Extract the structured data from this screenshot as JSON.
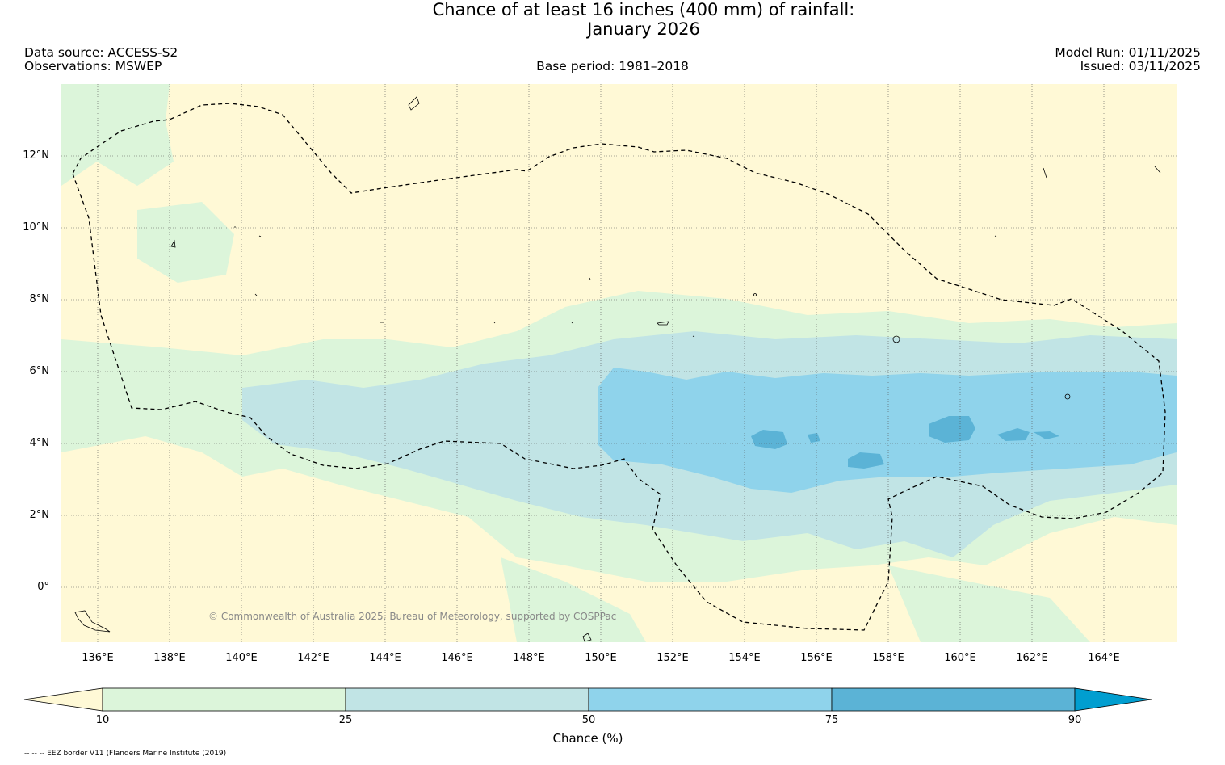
{
  "title": {
    "line1": "Chance of at least 16 inches (400  mm) of rainfall:",
    "line2": "January 2026"
  },
  "header": {
    "data_source": "Data source: ACCESS-S2",
    "observations": "Observations: MSWEP",
    "base_period": "Base period: 1981–2018",
    "model_run": "Model Run: 01/11/2025",
    "issued": "Issued: 03/11/2025"
  },
  "map": {
    "lat_labels": [
      "12°N",
      "10°N",
      "8°N",
      "6°N",
      "4°N",
      "2°N",
      "0°"
    ],
    "lon_labels": [
      "136°E",
      "138°E",
      "140°E",
      "142°E",
      "144°E",
      "146°E",
      "148°E",
      "150°E",
      "152°E",
      "154°E",
      "156°E",
      "158°E",
      "160°E",
      "162°E",
      "164°E"
    ],
    "copyright": "© Commonwealth of Australia 2025, Bureau of Meteorology, supported by COSPPac"
  },
  "colorbar": {
    "label": "Chance (%)",
    "ticks": [
      "10",
      "25",
      "50",
      "75",
      "90"
    ],
    "colors": {
      "below_10": "#fff9d6",
      "10_25": "#dcf5da",
      "25_50": "#c1e4e5",
      "50_75": "#8fd3eb",
      "75_90": "#5bb3d6",
      "above_90": "#019ed0"
    }
  },
  "footer": {
    "eez_note": "-- -- -- EEZ border V11 (Flanders Marine Institute (2019)"
  }
}
